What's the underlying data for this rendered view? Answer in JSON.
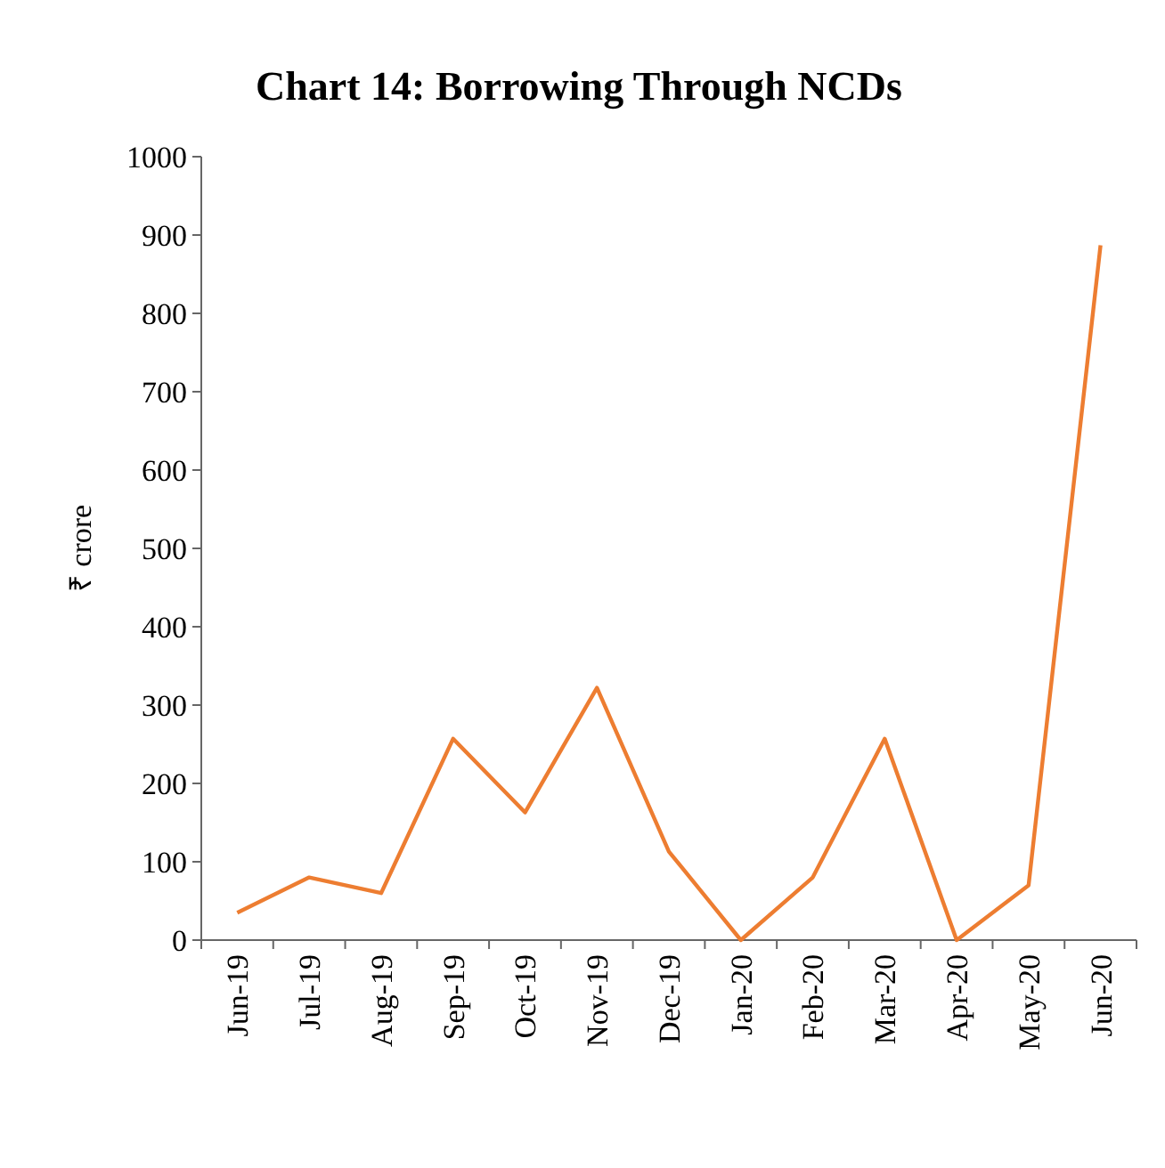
{
  "chart_data": {
    "type": "line",
    "title": "Chart 14: Borrowing Through NCDs",
    "ylabel": "₹ crore",
    "categories": [
      "Jun-19",
      "Jul-19",
      "Aug-19",
      "Sep-19",
      "Oct-19",
      "Nov-19",
      "Dec-19",
      "Jan-20",
      "Feb-20",
      "Mar-20",
      "Apr-20",
      "May-20",
      "Jun-20"
    ],
    "series": [
      {
        "color": "#ed7d31",
        "values": [
          35,
          80,
          60,
          257,
          163,
          322,
          113,
          0,
          80,
          257,
          0,
          70,
          887
        ]
      }
    ],
    "ylim": [
      0,
      1000
    ],
    "yticks": [
      0,
      100,
      200,
      300,
      400,
      500,
      600,
      700,
      800,
      900,
      1000
    ],
    "grid": false
  }
}
